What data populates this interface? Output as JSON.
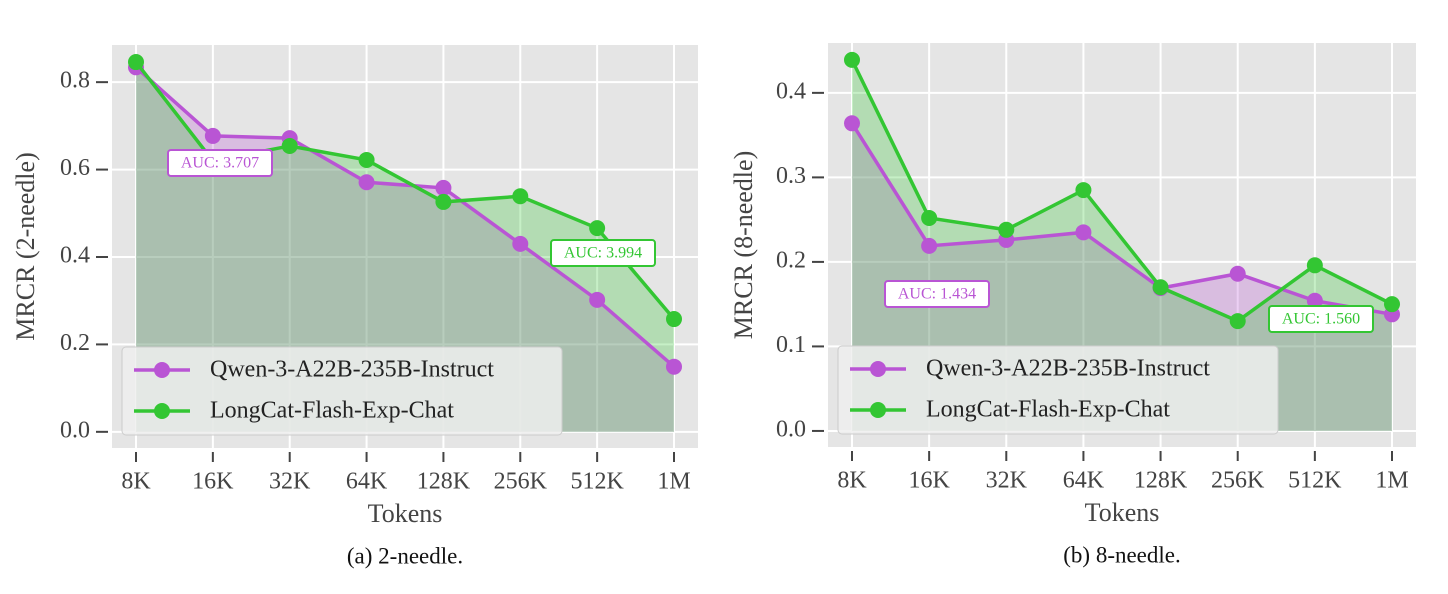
{
  "chart_data": [
    {
      "type": "line",
      "caption": "(a) 2-needle.",
      "xlabel": "Tokens",
      "ylabel": "MRCR (2-needle)",
      "categories": [
        "8K",
        "16K",
        "32K",
        "64K",
        "128K",
        "256K",
        "512K",
        "1M"
      ],
      "series": [
        {
          "name": "Qwen-3-A22B-235B-Instruct",
          "color": "#b955d4",
          "values": [
            0.834,
            0.677,
            0.672,
            0.571,
            0.558,
            0.43,
            0.302,
            0.149
          ],
          "annotation": "AUC: 3.707"
        },
        {
          "name": "LongCat-Flash-Exp-Chat",
          "color": "#33c633",
          "values": [
            0.846,
            0.62,
            0.654,
            0.622,
            0.526,
            0.539,
            0.466,
            0.258
          ],
          "annotation": "AUC: 3.994"
        }
      ],
      "ylim": [
        -0.037,
        0.885
      ],
      "yticks": [
        {
          "value": 0,
          "label": "0.0"
        },
        0.2,
        0.4,
        0.6,
        0.8
      ],
      "grid": true,
      "legend": "lower left"
    },
    {
      "type": "line",
      "caption": "(b) 8-needle.",
      "xlabel": "Tokens",
      "ylabel": "MRCR (8-needle)",
      "categories": [
        "8K",
        "16K",
        "32K",
        "64K",
        "128K",
        "256K",
        "512K",
        "1M"
      ],
      "series": [
        {
          "name": "Qwen-3-A22B-235B-Instruct",
          "color": "#b955d4",
          "values": [
            0.364,
            0.219,
            0.226,
            0.235,
            0.169,
            0.186,
            0.154,
            0.138
          ],
          "annotation": "AUC: 1.434"
        },
        {
          "name": "LongCat-Flash-Exp-Chat",
          "color": "#33c633",
          "values": [
            0.439,
            0.252,
            0.238,
            0.285,
            0.17,
            0.13,
            0.196,
            0.15
          ],
          "annotation": "AUC: 1.560"
        }
      ],
      "ylim": [
        -0.019,
        0.459
      ],
      "yticks": [
        {
          "value": 0,
          "label": "0.0"
        },
        0.1,
        0.2,
        0.3,
        0.4
      ],
      "grid": true,
      "legend": "lower left"
    }
  ]
}
